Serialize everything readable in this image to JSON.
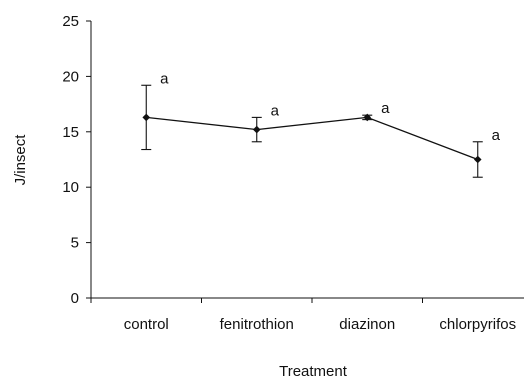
{
  "chart_data": {
    "type": "line",
    "categories": [
      "control",
      "fenitrothion",
      "diazinon",
      "chlorpyrifos"
    ],
    "series": [
      {
        "values": [
          16.3,
          15.2,
          16.3,
          12.5
        ],
        "error": [
          2.9,
          1.1,
          0.2,
          1.6
        ],
        "annotations": [
          "a",
          "a",
          "a",
          "a"
        ]
      }
    ],
    "xlabel": "Treatment",
    "ylabel": "J/insect",
    "ylim": [
      0,
      25
    ],
    "yticks": [
      0,
      5,
      10,
      15,
      20,
      25
    ],
    "grid": false,
    "marker": "diamond",
    "colors": {
      "line": "#111111",
      "text": "#111111",
      "background": "#ffffff"
    }
  }
}
